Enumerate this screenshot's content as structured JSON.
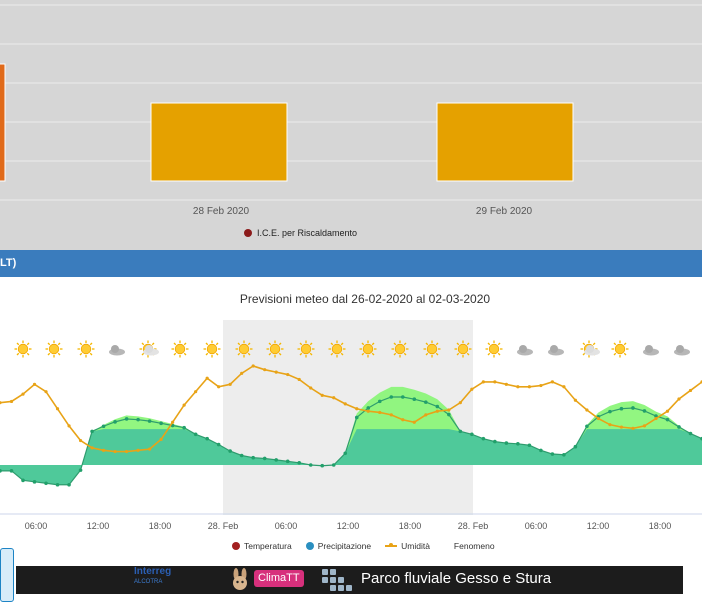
{
  "top_chart": {
    "categories": [
      "28 Feb 2020",
      "29 Feb 2020"
    ],
    "legend": "I.C.E. per Riscaldamento",
    "bar_color": "#e5a100",
    "clipped_bar_color": "#e06a1a",
    "legend_color": "#8b1a1a"
  },
  "section_header": {
    "label": "LT)"
  },
  "chart_data": {
    "type": "area",
    "title": "Previsioni meteo dal 26-02-2020 al 02-03-2020",
    "x_tick_labels": [
      "06:00",
      "12:00",
      "18:00",
      "28. Feb",
      "06:00",
      "12:00",
      "18:00",
      "28. Feb",
      "06:00",
      "12:00",
      "18:00"
    ],
    "legend": [
      "Temperatura",
      "Precipitazione",
      "Umidità",
      "Fenomeno"
    ],
    "weather_icons": [
      "sun",
      "sun",
      "sun",
      "cloud",
      "partly-cloudy",
      "sun",
      "sun",
      "sun",
      "sun",
      "sun",
      "sun",
      "sun",
      "sun",
      "sun",
      "sun",
      "sun",
      "cloud",
      "cloud",
      "partly-cloudy",
      "sun",
      "cloud",
      "cloud",
      "partly-cloudy",
      "sun"
    ],
    "series": [
      {
        "name": "Temperatura",
        "color": "#55d97a",
        "values": [
          4.5,
          4.5,
          3.2,
          3.0,
          2.8,
          2.6,
          2.6,
          4.6,
          9.9,
          10.6,
          11.2,
          11.6,
          11.5,
          11.3,
          11.0,
          10.7,
          10.4,
          9.5,
          8.9,
          8.1,
          7.2,
          6.6,
          6.3,
          6.2,
          6.0,
          5.8,
          5.6,
          5.3,
          5.2,
          5.3,
          6.9,
          11.8,
          13.1,
          14.0,
          14.6,
          14.6,
          14.3,
          13.9,
          13.3,
          12.2,
          9.9,
          9.5,
          8.9,
          8.5,
          8.3,
          8.2,
          8.0,
          7.3,
          6.8,
          6.7,
          7.8,
          10.6,
          11.9,
          12.6,
          13.0,
          13.1,
          12.7,
          12.0,
          11.5,
          10.5,
          9.6,
          8.9
        ]
      },
      {
        "name": "Umidità",
        "color": "#e8a317",
        "values": [
          71,
          72,
          78,
          86,
          80,
          66,
          52,
          40,
          34,
          32,
          31,
          31,
          32,
          33,
          41,
          55,
          69,
          80,
          91,
          84,
          86,
          95,
          101,
          98,
          96,
          94,
          90,
          83,
          77,
          75,
          70,
          66,
          64,
          63,
          61,
          57,
          55,
          61,
          64,
          65,
          71,
          82,
          88,
          88,
          86,
          84,
          84,
          85,
          88,
          84,
          73,
          65,
          58,
          53,
          51,
          50,
          52,
          58,
          64,
          74,
          81,
          88
        ]
      }
    ],
    "y_temp_range": [
      -2,
      16
    ],
    "y_hum_range": [
      20,
      110
    ],
    "night_band": "grey"
  }
}
